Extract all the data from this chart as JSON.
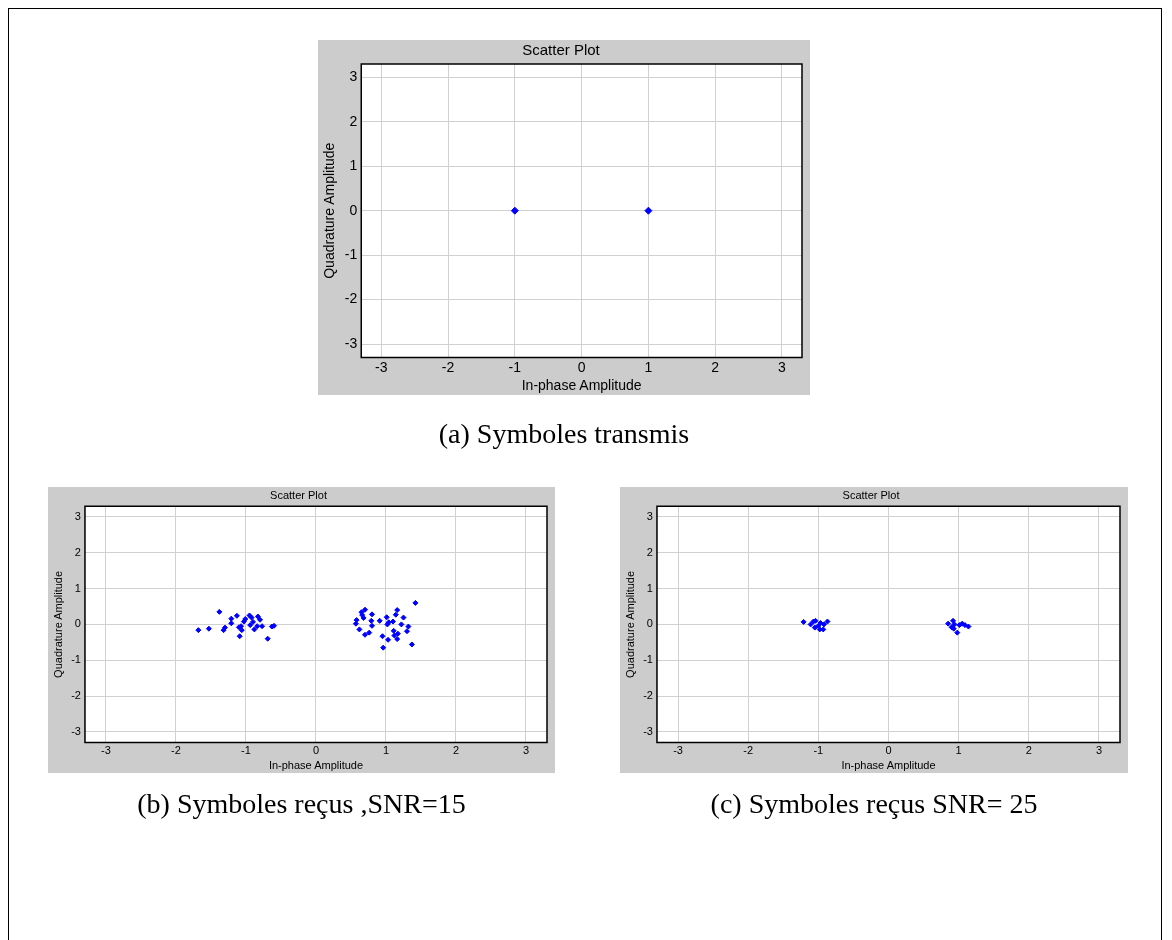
{
  "chart_data": [
    {
      "type": "scatter",
      "title": "Scatter Plot",
      "xlabel": "In-phase Amplitude",
      "ylabel": "Quadrature Amplitude",
      "xlim": [
        -3.3,
        3.3
      ],
      "ylim": [
        -3.3,
        3.3
      ],
      "xticks": [
        -3,
        -2,
        -1,
        0,
        1,
        2,
        3
      ],
      "yticks": [
        -3,
        -2,
        -1,
        0,
        1,
        2,
        3
      ],
      "grid": true,
      "marker": "diamond",
      "annotations": [
        "(a) Symboles transmis"
      ],
      "series": [
        {
          "color": "#0000ff",
          "x": [
            -1,
            1
          ],
          "values": [
            0,
            0
          ]
        }
      ]
    },
    {
      "type": "scatter",
      "title": "Scatter Plot",
      "xlabel": "In-phase Amplitude",
      "ylabel": "Quadrature Amplitude",
      "xlim": [
        -3.3,
        3.3
      ],
      "ylim": [
        -3.3,
        3.3
      ],
      "xticks": [
        -3,
        -2,
        -1,
        0,
        1,
        2,
        3
      ],
      "yticks": [
        -3,
        -2,
        -1,
        0,
        1,
        2,
        3
      ],
      "grid": true,
      "marker": "diamond",
      "annotations": [
        "(b) Symboles reçus ,SNR=15"
      ],
      "series": [
        {
          "color": "#0000ff",
          "x": [
            -1.68,
            -1.53,
            -1.38,
            -1.32,
            -1.3,
            -1.21,
            -1.21,
            -1.13,
            -1.1,
            -1.09,
            -1.07,
            -1.03,
            -1.01,
            -0.95,
            -0.92,
            -0.94,
            -0.9,
            -0.88,
            -0.83,
            -0.8,
            -0.84,
            -0.77,
            -0.69,
            -0.63,
            -0.6,
            -1.06,
            0.57,
            0.62,
            0.58,
            0.65,
            0.7,
            0.66,
            0.68,
            0.7,
            0.76,
            0.8,
            0.79,
            0.8,
            0.91,
            0.95,
            0.96,
            1.01,
            1.02,
            1.03,
            1.04,
            1.1,
            1.11,
            1.12,
            1.14,
            1.16,
            1.17,
            1.16,
            1.22,
            1.25,
            1.3,
            1.32,
            1.37,
            1.42
          ],
          "values": [
            -0.16,
            -0.12,
            0.35,
            -0.16,
            -0.09,
            0.16,
            0.03,
            0.24,
            -0.08,
            -0.33,
            -0.05,
            0.08,
            0.15,
            0.25,
            0.19,
            -0.02,
            0.07,
            -0.14,
            0.22,
            0.13,
            -0.05,
            -0.05,
            -0.4,
            -0.06,
            -0.04,
            -0.16,
            0.02,
            -0.14,
            0.12,
            0.34,
            0.41,
            0.26,
            0.18,
            -0.29,
            -0.23,
            0.28,
            0.1,
            -0.04,
            0.1,
            -0.33,
            -0.65,
            0.2,
            0,
            -0.43,
            0.06,
            0.08,
            -0.18,
            -0.31,
            0.27,
            0.4,
            -0.26,
            -0.41,
            0,
            0.19,
            -0.19,
            -0.06,
            -0.56,
            0.6
          ]
        }
      ]
    },
    {
      "type": "scatter",
      "title": "Scatter Plot",
      "xlabel": "In-phase Amplitude",
      "ylabel": "Quadrature Amplitude",
      "xlim": [
        -3.3,
        3.3
      ],
      "ylim": [
        -3.3,
        3.3
      ],
      "xticks": [
        -3,
        -2,
        -1,
        0,
        1,
        2,
        3
      ],
      "yticks": [
        -3,
        -2,
        -1,
        0,
        1,
        2,
        3
      ],
      "grid": true,
      "marker": "diamond",
      "annotations": [
        "(c) Symboles reçus SNR= 25"
      ],
      "series": [
        {
          "color": "#0000ff",
          "x": [
            -1.21,
            -1.11,
            -1.07,
            -1.04,
            -1,
            -0.97,
            -0.93,
            -0.87,
            -0.92,
            -1.05,
            -0.98,
            0.85,
            0.92,
            0.9,
            0.94,
            0.98,
            1.01,
            1.05,
            1.14,
            1.09,
            0.93
          ],
          "values": [
            0.07,
            0,
            0.08,
            0.1,
            -0.04,
            0.04,
            -0.14,
            0.08,
            0,
            -0.09,
            -0.14,
            0.02,
            0.1,
            -0.08,
            0,
            -0.23,
            -0.02,
            0.02,
            -0.06,
            -0.02,
            -0.12
          ]
        }
      ]
    }
  ]
}
